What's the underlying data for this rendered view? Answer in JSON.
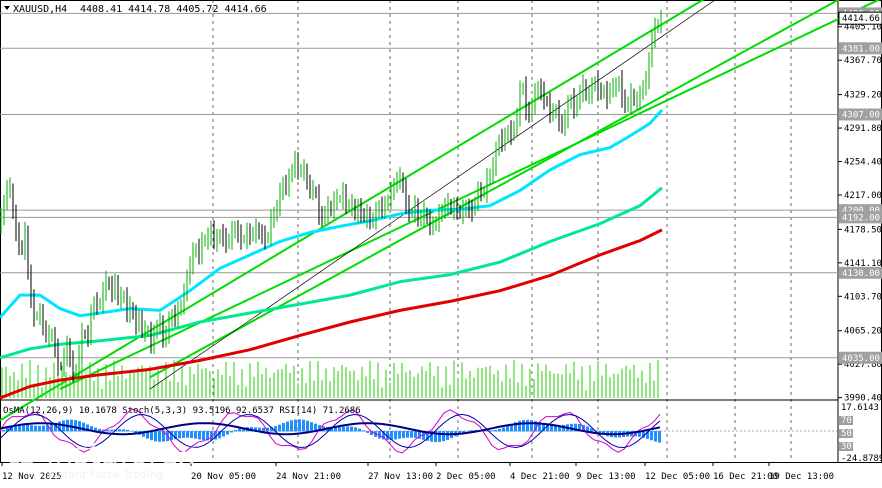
{
  "header": {
    "symbol": "XAUUSD,H4",
    "ohlc": "4408.41 4414.78 4405.72 4414.66"
  },
  "osc_header": "OsMA(12,26,9) 10.1678 Stoch(5,3,3) 93.5196 92.6537 RSI(14) 71.2686",
  "watermark": {
    "name": "instaforex",
    "tagline": "Instant Forex Trading"
  },
  "colors": {
    "bull": "#00b000",
    "bear": "#000000",
    "channel": "#00dd00",
    "ema_fast": "#00e5ff",
    "ema_mid": "#00e890",
    "ema_slow": "#e00000",
    "volume": "#22cc00",
    "osma": "#1e90ff",
    "stoch_main": "#0000aa",
    "stoch_signal": "#d400d4",
    "rsi": "#000080",
    "level_line": "#9a9a9a"
  },
  "chart_data": {
    "type": "candlestick",
    "instrument": "XAUUSD",
    "timeframe": "H4",
    "last": {
      "open": 4408.41,
      "high": 4414.78,
      "low": 4405.72,
      "close": 4414.66
    },
    "ylim": [
      3990.0,
      4435.0
    ],
    "y_ticks": [
      "4405.10",
      "4367.70",
      "4329.20",
      "4291.80",
      "4254.40",
      "4217.00",
      "4178.50",
      "4141.10",
      "4103.70",
      "4065.20",
      "4027.80",
      "3990.40"
    ],
    "x_ticks": [
      "12 Nov 2025",
      "20 Nov 05:00",
      "24 Nov 21:00",
      "27 Nov 13:00",
      "2 Dec 05:00",
      "4 Dec 21:00",
      "9 Dec 13:00",
      "12 Dec 05:00",
      "16 Dec 21:00",
      "19 Dec 13:00"
    ],
    "levels": [
      {
        "label": "4420.00",
        "price": 4420
      },
      {
        "label": "4381.00",
        "price": 4381
      },
      {
        "label": "4307.00",
        "price": 4307
      },
      {
        "label": "4200.00",
        "price": 4200
      },
      {
        "label": "4192.00",
        "price": 4192
      },
      {
        "label": "4130.00",
        "price": 4130
      },
      {
        "label": "4035.00",
        "price": 4035
      }
    ],
    "last_price_label": "4414.66",
    "close_path": [
      [
        0,
        4185
      ],
      [
        5,
        4215
      ],
      [
        9,
        4235
      ],
      [
        13,
        4195
      ],
      [
        17,
        4170
      ],
      [
        21,
        4150
      ],
      [
        25,
        4175
      ],
      [
        28,
        4130
      ],
      [
        31,
        4100
      ],
      [
        35,
        4075
      ],
      [
        39,
        4090
      ],
      [
        43,
        4070
      ],
      [
        47,
        4055
      ],
      [
        51,
        4065
      ],
      [
        55,
        4045
      ],
      [
        59,
        4020
      ],
      [
        63,
        4030
      ],
      [
        67,
        4050
      ],
      [
        71,
        4025
      ],
      [
        75,
        4015
      ],
      [
        79,
        4040
      ],
      [
        83,
        4070
      ],
      [
        87,
        4050
      ],
      [
        91,
        4085
      ],
      [
        95,
        4100
      ],
      [
        99,
        4090
      ],
      [
        103,
        4110
      ],
      [
        107,
        4125
      ],
      [
        111,
        4105
      ],
      [
        115,
        4120
      ],
      [
        119,
        4095
      ],
      [
        123,
        4110
      ],
      [
        127,
        4085
      ],
      [
        131,
        4095
      ],
      [
        135,
        4070
      ],
      [
        139,
        4080
      ],
      [
        143,
        4060
      ],
      [
        147,
        4070
      ],
      [
        151,
        4050
      ],
      [
        155,
        4065
      ],
      [
        159,
        4080
      ],
      [
        163,
        4055
      ],
      [
        167,
        4065
      ],
      [
        171,
        4085
      ],
      [
        175,
        4080
      ],
      [
        179,
        4090
      ],
      [
        183,
        4100
      ],
      [
        187,
        4125
      ],
      [
        191,
        4145
      ],
      [
        195,
        4160
      ],
      [
        199,
        4150
      ],
      [
        203,
        4170
      ],
      [
        207,
        4165
      ],
      [
        211,
        4180
      ],
      [
        215,
        4160
      ],
      [
        219,
        4175
      ],
      [
        223,
        4170
      ],
      [
        227,
        4160
      ],
      [
        231,
        4175
      ],
      [
        235,
        4180
      ],
      [
        239,
        4170
      ],
      [
        243,
        4165
      ],
      [
        247,
        4175
      ],
      [
        251,
        4170
      ],
      [
        255,
        4180
      ],
      [
        259,
        4175
      ],
      [
        263,
        4170
      ],
      [
        267,
        4165
      ],
      [
        271,
        4190
      ],
      [
        275,
        4195
      ],
      [
        279,
        4215
      ],
      [
        283,
        4230
      ],
      [
        287,
        4225
      ],
      [
        291,
        4245
      ],
      [
        295,
        4255
      ],
      [
        299,
        4240
      ],
      [
        303,
        4250
      ],
      [
        307,
        4230
      ],
      [
        311,
        4220
      ],
      [
        315,
        4225
      ],
      [
        319,
        4195
      ],
      [
        323,
        4190
      ],
      [
        327,
        4205
      ],
      [
        331,
        4200
      ],
      [
        335,
        4215
      ],
      [
        339,
        4210
      ],
      [
        343,
        4220
      ],
      [
        347,
        4200
      ],
      [
        351,
        4210
      ],
      [
        355,
        4195
      ],
      [
        359,
        4205
      ],
      [
        363,
        4190
      ],
      [
        367,
        4195
      ],
      [
        371,
        4185
      ],
      [
        375,
        4195
      ],
      [
        379,
        4205
      ],
      [
        383,
        4200
      ],
      [
        387,
        4210
      ],
      [
        391,
        4220
      ],
      [
        395,
        4230
      ],
      [
        399,
        4240
      ],
      [
        403,
        4225
      ],
      [
        407,
        4200
      ],
      [
        411,
        4195
      ],
      [
        415,
        4205
      ],
      [
        419,
        4185
      ],
      [
        423,
        4200
      ],
      [
        427,
        4190
      ],
      [
        431,
        4180
      ],
      [
        435,
        4185
      ],
      [
        439,
        4195
      ],
      [
        443,
        4200
      ],
      [
        447,
        4210
      ],
      [
        451,
        4200
      ],
      [
        455,
        4205
      ],
      [
        459,
        4195
      ],
      [
        463,
        4200
      ],
      [
        467,
        4205
      ],
      [
        471,
        4195
      ],
      [
        475,
        4210
      ],
      [
        479,
        4225
      ],
      [
        483,
        4215
      ],
      [
        487,
        4235
      ],
      [
        491,
        4240
      ],
      [
        495,
        4260
      ],
      [
        499,
        4280
      ],
      [
        503,
        4275
      ],
      [
        507,
        4290
      ],
      [
        511,
        4285
      ],
      [
        515,
        4295
      ],
      [
        518,
        4310
      ],
      [
        521,
        4345
      ],
      [
        524,
        4335
      ],
      [
        527,
        4300
      ],
      [
        531,
        4315
      ],
      [
        535,
        4330
      ],
      [
        539,
        4340
      ],
      [
        543,
        4325
      ],
      [
        547,
        4320
      ],
      [
        551,
        4305
      ],
      [
        555,
        4315
      ],
      [
        559,
        4300
      ],
      [
        563,
        4290
      ],
      [
        567,
        4315
      ],
      [
        571,
        4325
      ],
      [
        575,
        4310
      ],
      [
        579,
        4330
      ],
      [
        583,
        4340
      ],
      [
        587,
        4325
      ],
      [
        591,
        4335
      ],
      [
        595,
        4345
      ],
      [
        599,
        4330
      ],
      [
        603,
        4335
      ],
      [
        607,
        4325
      ],
      [
        611,
        4340
      ],
      [
        615,
        4335
      ],
      [
        619,
        4345
      ],
      [
        623,
        4320
      ],
      [
        627,
        4315
      ],
      [
        631,
        4330
      ],
      [
        635,
        4320
      ],
      [
        639,
        4325
      ],
      [
        643,
        4340
      ],
      [
        647,
        4345
      ],
      [
        650,
        4380
      ],
      [
        653,
        4400
      ],
      [
        656,
        4405
      ],
      [
        659,
        4410
      ],
      [
        662,
        4414.66
      ]
    ],
    "ema_fast": [
      [
        0,
        4080
      ],
      [
        20,
        4105
      ],
      [
        40,
        4105
      ],
      [
        60,
        4090
      ],
      [
        80,
        4082
      ],
      [
        100,
        4085
      ],
      [
        130,
        4090
      ],
      [
        160,
        4088
      ],
      [
        190,
        4110
      ],
      [
        220,
        4135
      ],
      [
        250,
        4150
      ],
      [
        280,
        4165
      ],
      [
        310,
        4175
      ],
      [
        340,
        4182
      ],
      [
        370,
        4188
      ],
      [
        400,
        4196
      ],
      [
        430,
        4200
      ],
      [
        460,
        4201
      ],
      [
        490,
        4205
      ],
      [
        520,
        4222
      ],
      [
        550,
        4245
      ],
      [
        580,
        4262
      ],
      [
        610,
        4270
      ],
      [
        630,
        4283
      ],
      [
        650,
        4297
      ],
      [
        662,
        4312
      ]
    ],
    "ema_mid": [
      [
        0,
        4035
      ],
      [
        30,
        4045
      ],
      [
        60,
        4050
      ],
      [
        100,
        4054
      ],
      [
        150,
        4060
      ],
      [
        200,
        4075
      ],
      [
        250,
        4085
      ],
      [
        300,
        4095
      ],
      [
        350,
        4105
      ],
      [
        400,
        4120
      ],
      [
        450,
        4128
      ],
      [
        500,
        4142
      ],
      [
        550,
        4165
      ],
      [
        600,
        4185
      ],
      [
        640,
        4205
      ],
      [
        662,
        4225
      ]
    ],
    "ema_slow": [
      [
        0,
        3990
      ],
      [
        30,
        4003
      ],
      [
        60,
        4010
      ],
      [
        100,
        4016
      ],
      [
        150,
        4022
      ],
      [
        200,
        4032
      ],
      [
        250,
        4044
      ],
      [
        300,
        4060
      ],
      [
        350,
        4075
      ],
      [
        400,
        4088
      ],
      [
        450,
        4098
      ],
      [
        500,
        4110
      ],
      [
        550,
        4127
      ],
      [
        600,
        4150
      ],
      [
        640,
        4166
      ],
      [
        662,
        4178
      ]
    ],
    "channel_lines": [
      {
        "from": [
          0,
          3965
        ],
        "to": [
          882,
          4555
        ]
      },
      {
        "from": [
          150,
          4013
        ],
        "to": [
          882,
          4462
        ]
      },
      {
        "from": [
          60,
          4000
        ],
        "to": [
          882,
          4437
        ]
      }
    ],
    "center_line": {
      "from": [
        150,
        4000
      ],
      "to": [
        715,
        4435
      ]
    },
    "oscillators": {
      "osma": {
        "name": "OsMA(12,26,9)",
        "value": 10.1678
      },
      "stoch": {
        "name": "Stoch(5,3,3)",
        "main": 93.5196,
        "signal": 92.6537
      },
      "rsi": {
        "name": "RSI(14)",
        "value": 71.2686
      },
      "scale_labels": [
        "17.6143",
        "70",
        "50",
        "30",
        "-24.8789"
      ]
    }
  }
}
